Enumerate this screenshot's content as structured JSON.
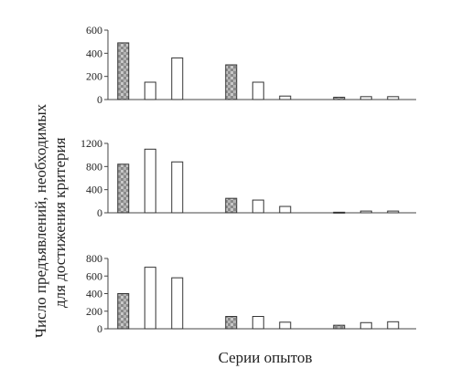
{
  "figure": {
    "ylabel_line1": "Число предъявлений, необходимых",
    "ylabel_line2": "для достижения критерия",
    "xlabel": "Серии опытов"
  },
  "chart_data": [
    {
      "type": "bar",
      "ylim": [
        0,
        600
      ],
      "yticks": [
        0,
        200,
        400,
        600
      ],
      "bars": [
        {
          "index": 0,
          "value": 490,
          "style": "patterned"
        },
        {
          "index": 1,
          "value": 150,
          "style": "open"
        },
        {
          "index": 2,
          "value": 360,
          "style": "open"
        },
        {
          "index": 4,
          "value": 300,
          "style": "patterned"
        },
        {
          "index": 5,
          "value": 150,
          "style": "open"
        },
        {
          "index": 6,
          "value": 30,
          "style": "open"
        },
        {
          "index": 8,
          "value": 20,
          "style": "patterned"
        },
        {
          "index": 9,
          "value": 25,
          "style": "open"
        },
        {
          "index": 10,
          "value": 25,
          "style": "open"
        }
      ]
    },
    {
      "type": "bar",
      "ylim": [
        0,
        1200
      ],
      "yticks": [
        0,
        400,
        800,
        1200
      ],
      "bars": [
        {
          "index": 0,
          "value": 840,
          "style": "patterned"
        },
        {
          "index": 1,
          "value": 1100,
          "style": "open"
        },
        {
          "index": 2,
          "value": 880,
          "style": "open"
        },
        {
          "index": 4,
          "value": 250,
          "style": "patterned"
        },
        {
          "index": 5,
          "value": 220,
          "style": "open"
        },
        {
          "index": 6,
          "value": 110,
          "style": "open"
        },
        {
          "index": 8,
          "value": 10,
          "style": "patterned"
        },
        {
          "index": 9,
          "value": 30,
          "style": "open"
        },
        {
          "index": 10,
          "value": 30,
          "style": "open"
        }
      ]
    },
    {
      "type": "bar",
      "ylim": [
        0,
        800
      ],
      "yticks": [
        0,
        200,
        400,
        600,
        800
      ],
      "bars": [
        {
          "index": 0,
          "value": 400,
          "style": "patterned"
        },
        {
          "index": 1,
          "value": 700,
          "style": "open"
        },
        {
          "index": 2,
          "value": 580,
          "style": "open"
        },
        {
          "index": 4,
          "value": 140,
          "style": "patterned"
        },
        {
          "index": 5,
          "value": 140,
          "style": "open"
        },
        {
          "index": 6,
          "value": 75,
          "style": "open"
        },
        {
          "index": 8,
          "value": 40,
          "style": "patterned"
        },
        {
          "index": 9,
          "value": 70,
          "style": "open"
        },
        {
          "index": 10,
          "value": 80,
          "style": "open"
        }
      ]
    }
  ]
}
